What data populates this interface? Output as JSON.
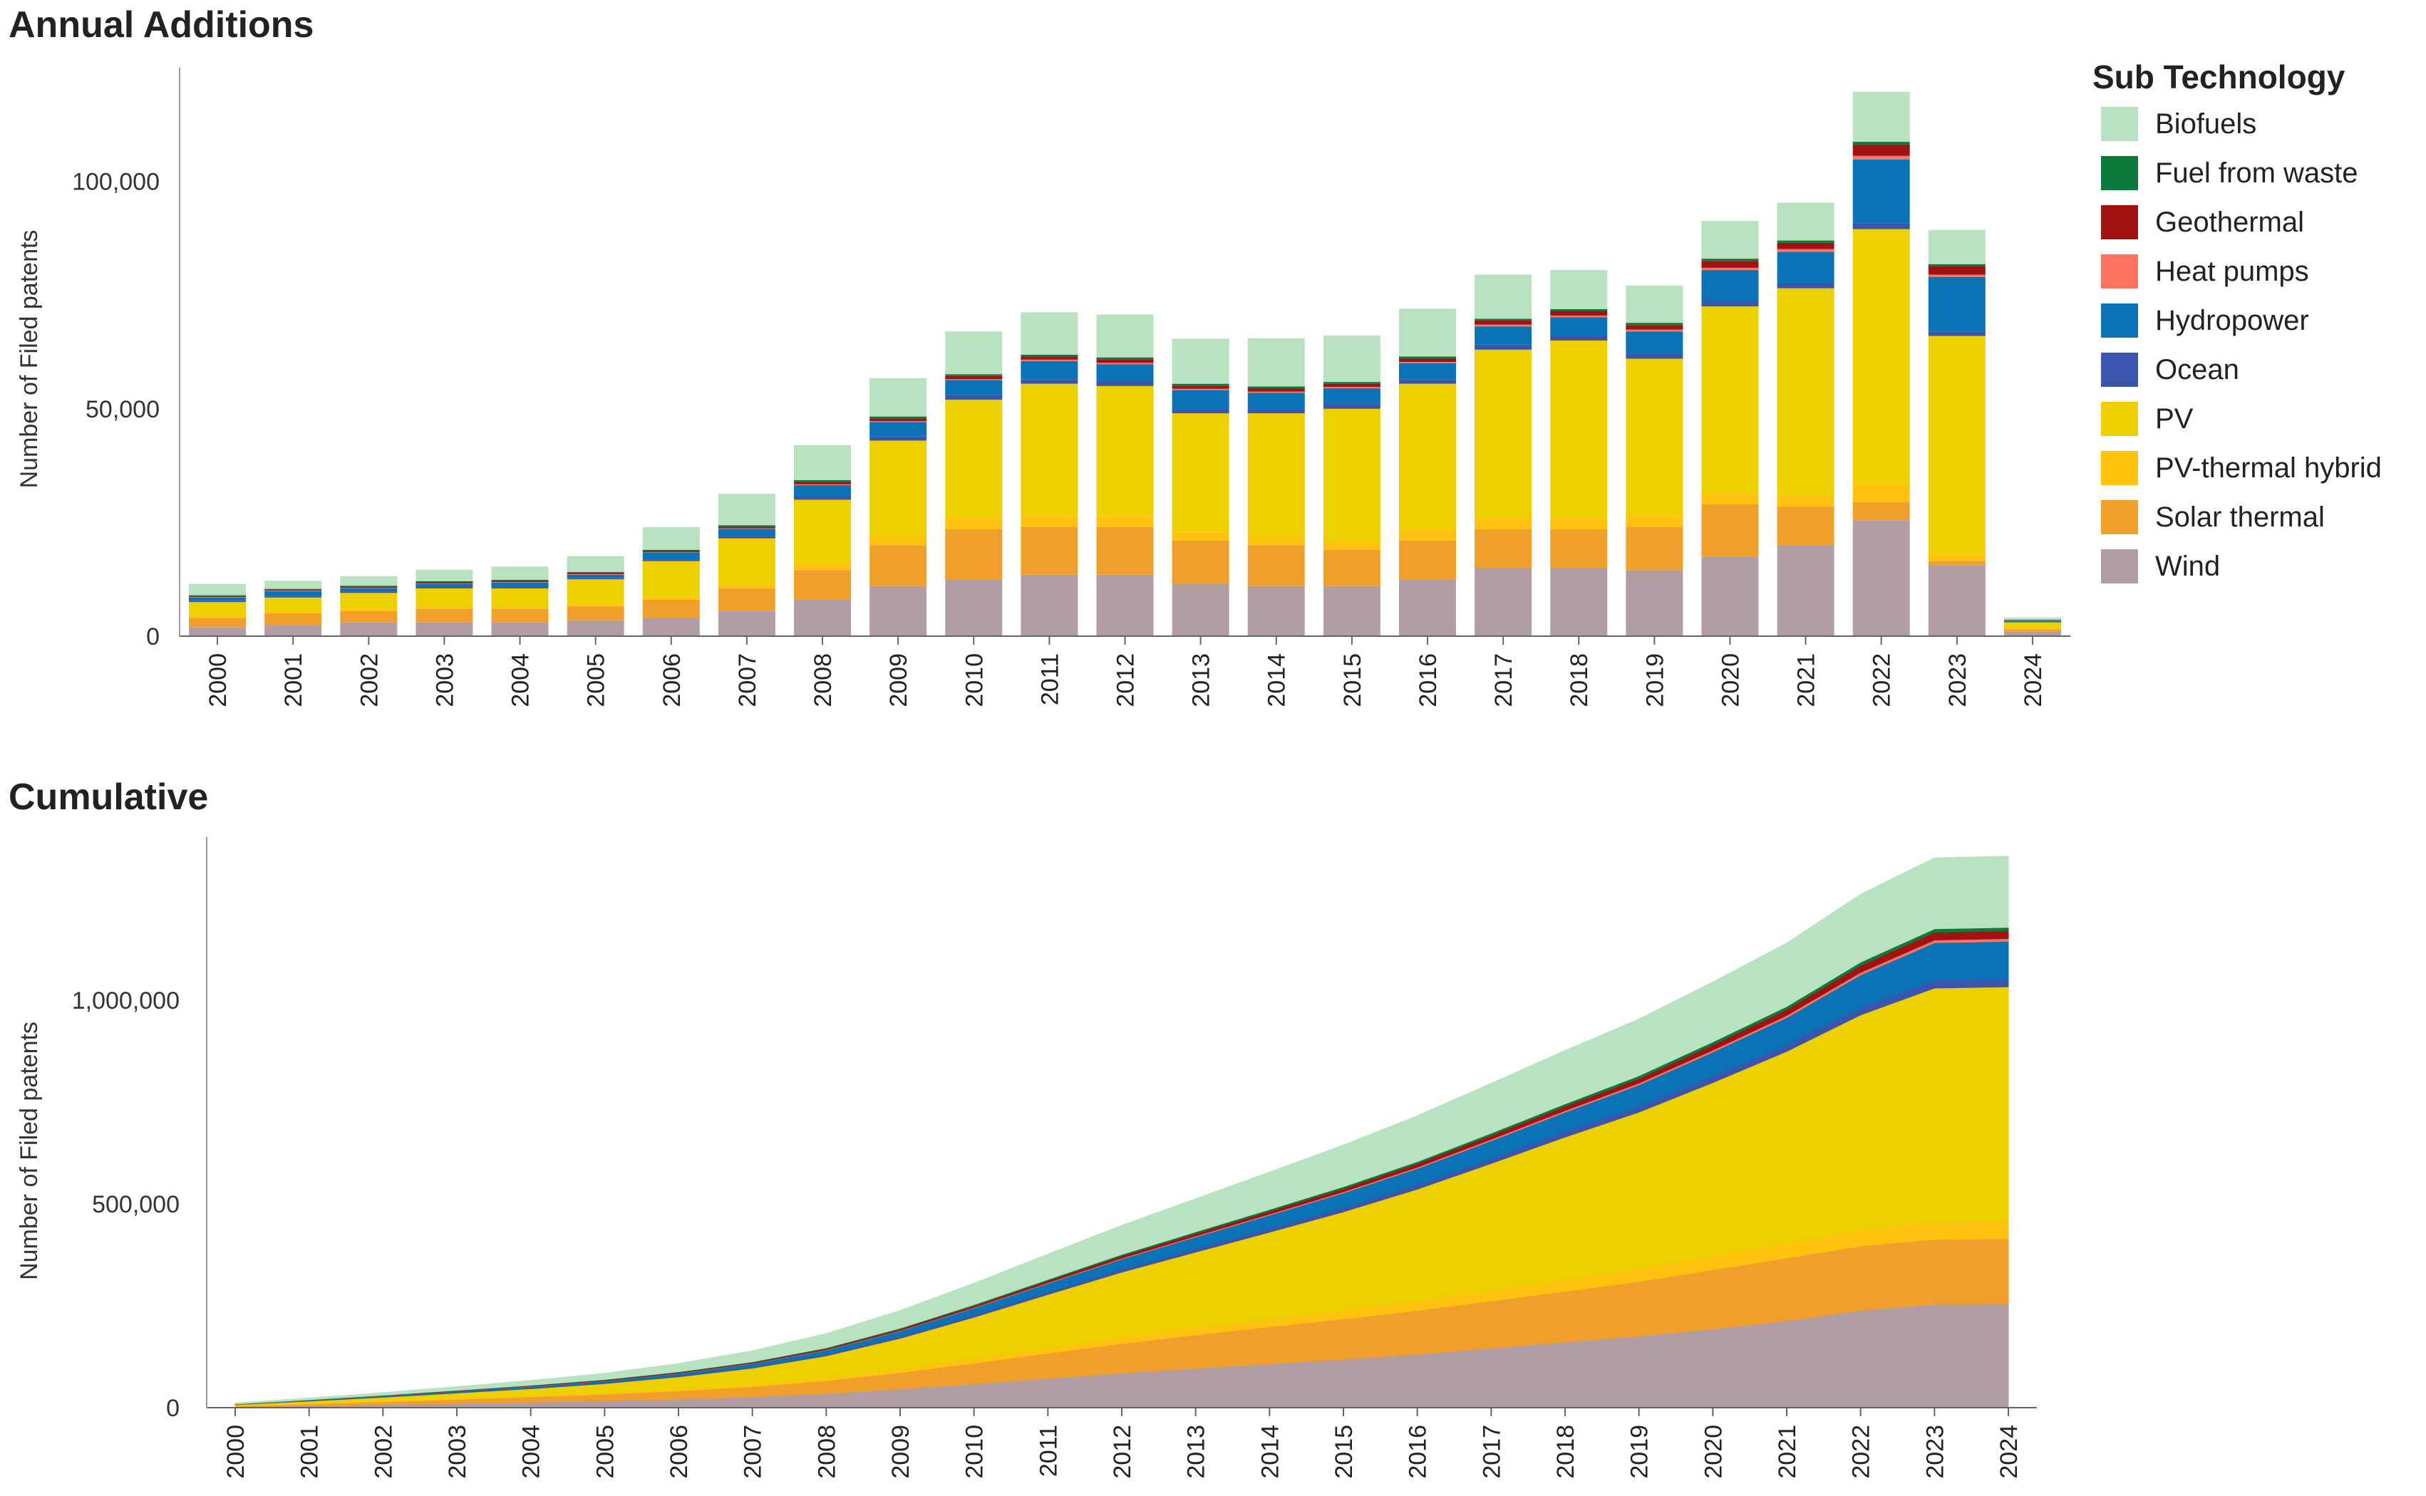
{
  "colors": {
    "Biofuels": "#b9e2c0",
    "Fuel from waste": "#0b7a3b",
    "Geothermal": "#a11212",
    "Heat pumps": "#ff7360",
    "Hydropower": "#0a73b5",
    "Ocean": "#3a55ad",
    "PV": "#ecd000",
    "PV-thermal hybrid": "#ffc20e",
    "Solar thermal": "#f0a02a",
    "Wind": "#b29da3"
  },
  "legend": {
    "title": "Sub Technology",
    "items": [
      "Biofuels",
      "Fuel from waste",
      "Geothermal",
      "Heat pumps",
      "Hydropower",
      "Ocean",
      "PV",
      "PV-thermal hybrid",
      "Solar thermal",
      "Wind"
    ]
  },
  "chart_data": [
    {
      "type": "bar",
      "stacked": true,
      "title": "Annual Additions",
      "xlabel": "",
      "ylabel": "Number of Filed patents",
      "ylim": [
        0,
        125000
      ],
      "yticks": [
        0,
        50000,
        100000
      ],
      "ytick_labels": [
        "0",
        "50,000",
        "100,000"
      ],
      "grid": false,
      "legend_position": "right",
      "categories": [
        "2000",
        "2001",
        "2002",
        "2003",
        "2004",
        "2005",
        "2006",
        "2007",
        "2008",
        "2009",
        "2010",
        "2011",
        "2012",
        "2013",
        "2014",
        "2015",
        "2016",
        "2017",
        "2018",
        "2019",
        "2020",
        "2021",
        "2022",
        "2023",
        "2024"
      ],
      "series": [
        {
          "name": "Wind",
          "values": [
            2000,
            2500,
            3000,
            3000,
            3000,
            3500,
            4000,
            5500,
            8000,
            11000,
            12500,
            13500,
            13500,
            11500,
            11000,
            11000,
            12500,
            15000,
            15000,
            14500,
            17500,
            20000,
            25500,
            15500,
            1000
          ]
        },
        {
          "name": "Solar thermal",
          "values": [
            2000,
            2500,
            2500,
            3000,
            3000,
            3000,
            4000,
            5000,
            6500,
            9000,
            11000,
            10500,
            10500,
            9500,
            9000,
            8000,
            8500,
            8500,
            8500,
            9500,
            11500,
            8500,
            4000,
            1000,
            500
          ]
        },
        {
          "name": "PV-thermal hybrid",
          "values": [
            500,
            500,
            500,
            500,
            500,
            500,
            500,
            1000,
            1500,
            2000,
            2500,
            2500,
            2500,
            2000,
            2000,
            2000,
            2500,
            2500,
            2500,
            2500,
            2500,
            2500,
            4000,
            1500,
            300
          ]
        },
        {
          "name": "PV",
          "values": [
            3000,
            3000,
            3500,
            4000,
            4000,
            5500,
            8000,
            10000,
            14000,
            21000,
            26000,
            29000,
            28500,
            26000,
            27000,
            29000,
            32000,
            37000,
            39000,
            34500,
            41000,
            45500,
            56000,
            48000,
            1200
          ]
        },
        {
          "name": "Ocean",
          "values": [
            300,
            300,
            300,
            300,
            300,
            300,
            400,
            500,
            700,
            900,
            1000,
            1000,
            1000,
            900,
            900,
            900,
            1000,
            1100,
            1100,
            1100,
            1200,
            1200,
            1300,
            1000,
            100
          ]
        },
        {
          "name": "Hydropower",
          "values": [
            700,
            1100,
            700,
            700,
            1000,
            700,
            1500,
            1600,
            2500,
            3200,
            3300,
            4000,
            3800,
            4200,
            3600,
            3600,
            3500,
            4000,
            4000,
            4900,
            6800,
            6800,
            14000,
            12000,
            300
          ]
        },
        {
          "name": "Heat pumps",
          "values": [
            100,
            100,
            100,
            100,
            100,
            100,
            100,
            100,
            200,
            200,
            200,
            300,
            300,
            300,
            300,
            300,
            300,
            400,
            400,
            400,
            500,
            600,
            800,
            500,
            50
          ]
        },
        {
          "name": "Geothermal",
          "values": [
            200,
            200,
            300,
            300,
            300,
            300,
            300,
            400,
            500,
            600,
            700,
            700,
            800,
            700,
            700,
            700,
            800,
            900,
            1000,
            1000,
            1500,
            1400,
            2500,
            1800,
            100
          ]
        },
        {
          "name": "Fuel from waste",
          "values": [
            200,
            200,
            200,
            200,
            200,
            200,
            200,
            300,
            400,
            400,
            400,
            400,
            400,
            400,
            400,
            400,
            400,
            400,
            400,
            500,
            500,
            500,
            600,
            500,
            50
          ]
        },
        {
          "name": "Biofuels",
          "values": [
            2500,
            1800,
            2100,
            2500,
            2900,
            3500,
            5000,
            6900,
            7700,
            8400,
            9400,
            9300,
            9400,
            9900,
            10600,
            10200,
            10500,
            9700,
            8600,
            8200,
            8300,
            8300,
            11000,
            7500,
            500
          ]
        }
      ]
    },
    {
      "type": "area",
      "stacked": true,
      "title": "Cumulative",
      "xlabel": "",
      "ylabel": "Number of Filed patents",
      "ylim": [
        0,
        1400000
      ],
      "yticks": [
        0,
        500000,
        1000000
      ],
      "ytick_labels": [
        "0",
        "500,000",
        "1,000,000"
      ],
      "grid": false,
      "categories": [
        "2000",
        "2001",
        "2002",
        "2003",
        "2004",
        "2005",
        "2006",
        "2007",
        "2008",
        "2009",
        "2010",
        "2011",
        "2012",
        "2013",
        "2014",
        "2015",
        "2016",
        "2017",
        "2018",
        "2019",
        "2020",
        "2021",
        "2022",
        "2023",
        "2024"
      ],
      "series_source": "cumulative sums of Annual Additions series"
    }
  ]
}
